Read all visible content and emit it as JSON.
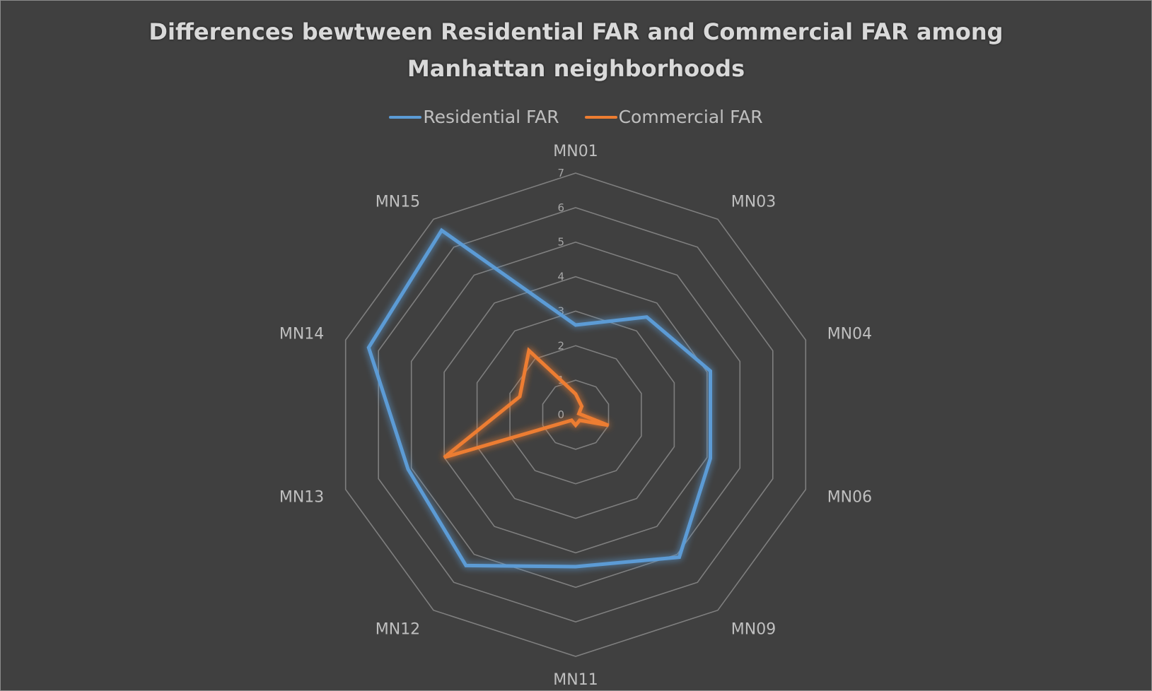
{
  "chart_data": {
    "type": "radar",
    "title_lines": [
      "Differences bewtween Residential FAR and Commercial FAR among",
      "Manhattan neighborhoods"
    ],
    "categories": [
      "MN01",
      "MN03",
      "MN04",
      "MN06",
      "MN09",
      "MN11",
      "MN12",
      "MN13",
      "MN14",
      "MN15"
    ],
    "radial_ticks": [
      "0",
      "1",
      "2",
      "3",
      "4",
      "5",
      "6",
      "7"
    ],
    "rmax": 7,
    "grid": true,
    "legend_position": "top",
    "series": [
      {
        "name": "Residential FAR",
        "color": "#5b9bd5",
        "values": [
          2.6,
          3.5,
          4.1,
          4.1,
          5.1,
          4.4,
          5.4,
          5.1,
          6.3,
          6.6
        ]
      },
      {
        "name": "Commercial FAR",
        "color": "#ed7d31",
        "values": [
          0.6,
          0.3,
          0.1,
          1.0,
          0.2,
          0.3,
          0.2,
          4.0,
          1.7,
          2.3
        ]
      }
    ]
  }
}
